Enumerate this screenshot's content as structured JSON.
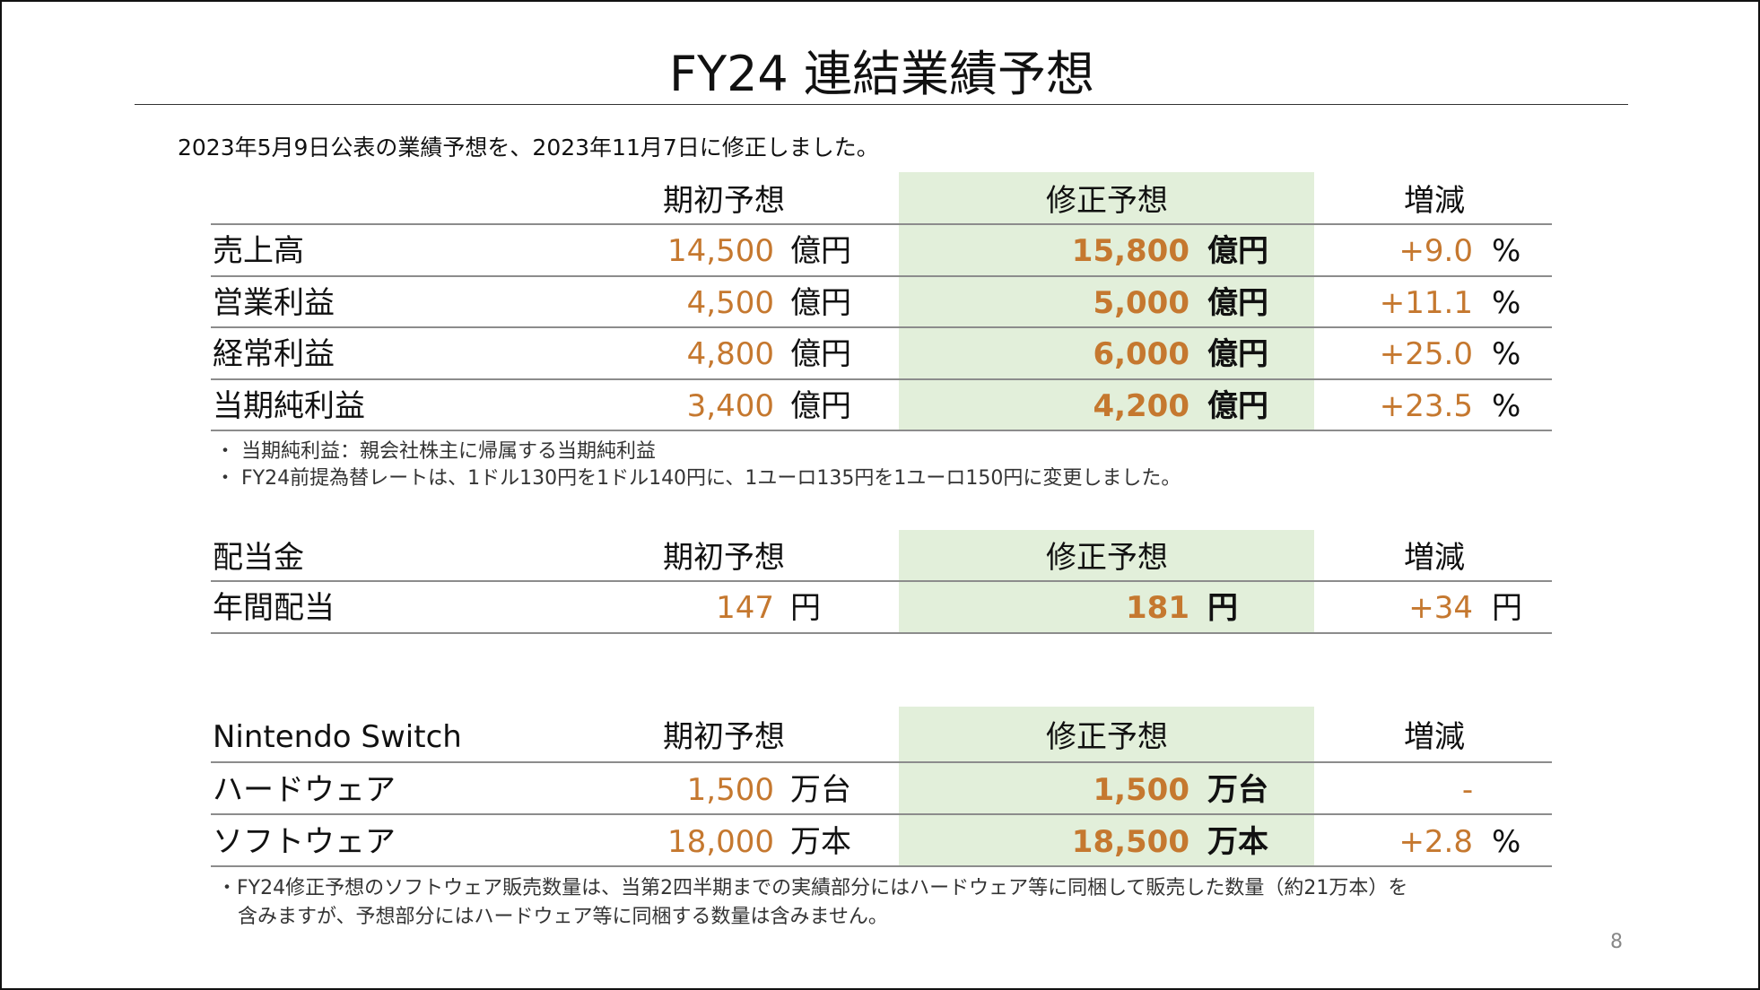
{
  "title": "FY24 連結業績予想",
  "intro": "2023年5月9日公表の業績予想を、2023年11月7日に修正しました。",
  "tables": [
    {
      "header": {
        "initial": "期初予想",
        "revised": "修正予想",
        "change": "増減"
      },
      "rows": [
        {
          "label": "売上高",
          "initial": "14,500",
          "initial_unit": "億円",
          "revised": "15,800",
          "revised_unit": "億円",
          "change": "+9.0",
          "change_unit": "%"
        },
        {
          "label": "営業利益",
          "initial": "4,500",
          "initial_unit": "億円",
          "revised": "5,000",
          "revised_unit": "億円",
          "change": "+11.1",
          "change_unit": "%"
        },
        {
          "label": "経常利益",
          "initial": "4,800",
          "initial_unit": "億円",
          "revised": "6,000",
          "revised_unit": "億円",
          "change": "+25.0",
          "change_unit": "%"
        },
        {
          "label": "当期純利益",
          "initial": "3,400",
          "initial_unit": "億円",
          "revised": "4,200",
          "revised_unit": "億円",
          "change": "+23.5",
          "change_unit": "%"
        }
      ],
      "notes": [
        "・ 当期純利益：親会社株主に帰属する当期純利益",
        "・ FY24前提為替レートは、1ドル130円を1ドル140円に、1ユーロ135円を1ユーロ150円に変更しました。"
      ]
    },
    {
      "header": {
        "label": "配当金",
        "initial": "期初予想",
        "revised": "修正予想",
        "change": "増減"
      },
      "rows": [
        {
          "label": "年間配当",
          "initial": "147",
          "initial_unit": "円",
          "revised": "181",
          "revised_unit": "円",
          "change": "+34",
          "change_unit": "円"
        }
      ]
    },
    {
      "header": {
        "label": "Nintendo Switch",
        "initial": "期初予想",
        "revised": "修正予想",
        "change": "増減"
      },
      "rows": [
        {
          "label": "ハードウェア",
          "initial": "1,500",
          "initial_unit": "万台",
          "revised": "1,500",
          "revised_unit": "万台",
          "change": "-"
        },
        {
          "label": "ソフトウェア",
          "initial": "18,000",
          "initial_unit": "万本",
          "revised": "18,500",
          "revised_unit": "万本",
          "change": "+2.8",
          "change_unit": "%"
        }
      ],
      "notes": [
        "・FY24修正予想のソフトウェア販売数量は、当第2四半期までの実績部分にはハードウェア等に同梱して販売した数量（約21万本）を",
        "含みますが、予想部分にはハードウェア等に同梱する数量は含みません。"
      ]
    }
  ],
  "page_number": "8"
}
